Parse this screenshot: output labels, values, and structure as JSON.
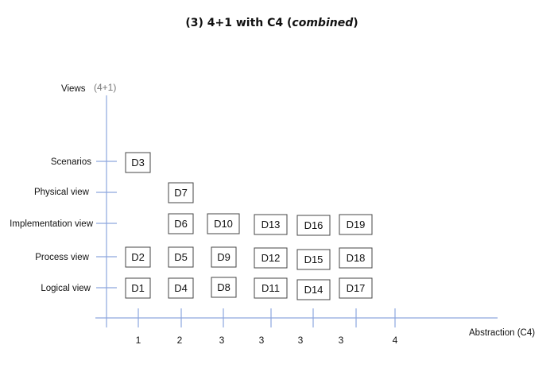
{
  "title": {
    "prefix": "(3) 4+1 with C4 (",
    "emphasis": "combined",
    "suffix": ")"
  },
  "y_axis": {
    "label": "Views",
    "sublabel": "(4+1)",
    "ticks": [
      "Logical view",
      "Process view",
      "Implementation view",
      "Physical view",
      "Scenarios"
    ]
  },
  "x_axis": {
    "label": "Abstraction (C4)",
    "ticks": [
      "1",
      "2",
      "3",
      "3",
      "3",
      "3",
      "4"
    ]
  },
  "diagrams": [
    {
      "id": "D1",
      "x": "1",
      "view": "Logical view"
    },
    {
      "id": "D2",
      "x": "1",
      "view": "Process view"
    },
    {
      "id": "D3",
      "x": "1",
      "view": "Scenarios"
    },
    {
      "id": "D4",
      "x": "2",
      "view": "Logical view"
    },
    {
      "id": "D5",
      "x": "2",
      "view": "Process view"
    },
    {
      "id": "D6",
      "x": "2",
      "view": "Implementation view"
    },
    {
      "id": "D7",
      "x": "2",
      "view": "Physical view"
    },
    {
      "id": "D8",
      "x": "3",
      "view": "Logical view"
    },
    {
      "id": "D9",
      "x": "3",
      "view": "Process view"
    },
    {
      "id": "D10",
      "x": "3",
      "view": "Implementation view"
    },
    {
      "id": "D11",
      "x": "3",
      "view": "Logical view"
    },
    {
      "id": "D12",
      "x": "3",
      "view": "Process view"
    },
    {
      "id": "D13",
      "x": "3",
      "view": "Implementation view"
    },
    {
      "id": "D14",
      "x": "3",
      "view": "Logical view"
    },
    {
      "id": "D15",
      "x": "3",
      "view": "Process view"
    },
    {
      "id": "D16",
      "x": "3",
      "view": "Implementation view"
    },
    {
      "id": "D17",
      "x": "3",
      "view": "Logical view"
    },
    {
      "id": "D18",
      "x": "3",
      "view": "Process view"
    },
    {
      "id": "D19",
      "x": "3",
      "view": "Implementation view"
    }
  ],
  "colors": {
    "axis": "#8da6de",
    "box_border": "#444444",
    "text": "#111111",
    "sublabel": "#777777"
  }
}
